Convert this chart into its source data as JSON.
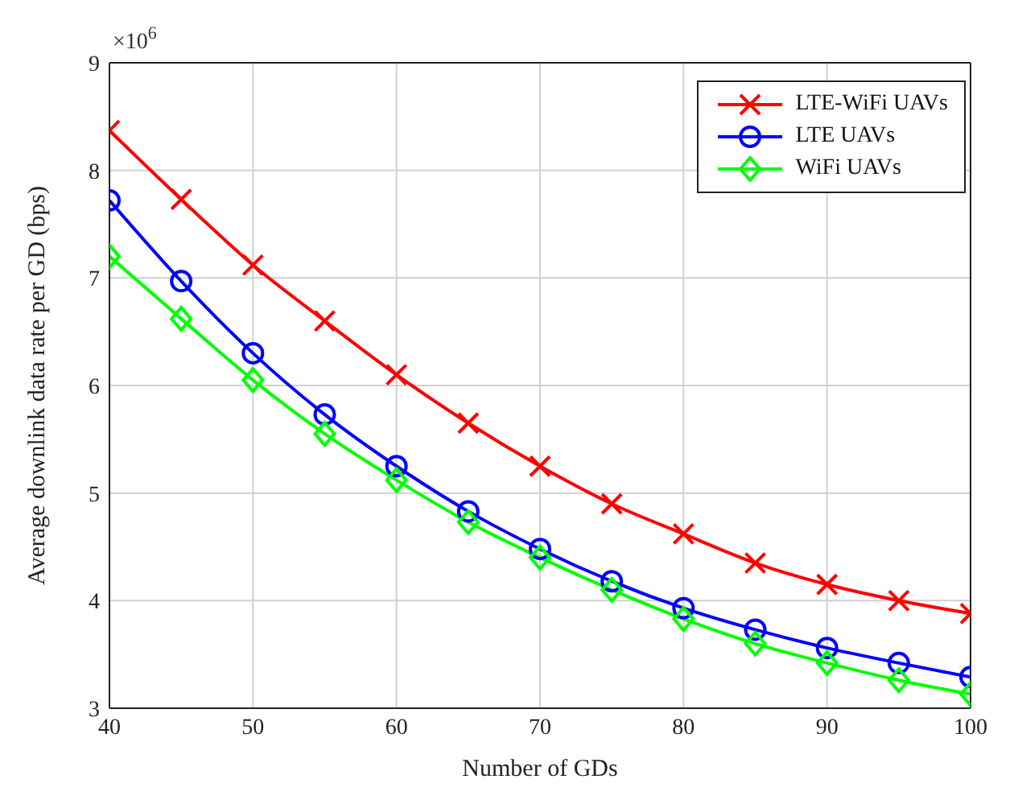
{
  "chart_data": {
    "type": "line",
    "xlabel": "Number of GDs",
    "ylabel": "Average downlink data rate per GD (bps)",
    "annotations": [
      "×10$^{6}$"
    ],
    "x": [
      40,
      45,
      50,
      55,
      60,
      65,
      70,
      75,
      80,
      85,
      90,
      95,
      100
    ],
    "series": [
      {
        "name": "LTE-WiFi UAVs",
        "color": "#ff0000",
        "marker": "cross",
        "values": [
          8.37,
          7.73,
          7.12,
          6.6,
          6.1,
          5.65,
          5.25,
          4.9,
          4.62,
          4.35,
          4.15,
          4.0,
          3.88
        ]
      },
      {
        "name": "LTE UAVs",
        "color": "#0000ff",
        "marker": "circle",
        "values": [
          7.72,
          6.97,
          6.3,
          5.73,
          5.25,
          4.83,
          4.48,
          4.18,
          3.93,
          3.73,
          3.56,
          3.42,
          3.29
        ]
      },
      {
        "name": "WiFi UAVs",
        "color": "#00ff00",
        "marker": "diamond",
        "values": [
          7.2,
          6.62,
          6.05,
          5.55,
          5.12,
          4.73,
          4.4,
          4.1,
          3.83,
          3.6,
          3.42,
          3.26,
          3.13
        ]
      }
    ],
    "xlim": [
      40,
      100
    ],
    "xticks": [
      40,
      50,
      60,
      70,
      80,
      90,
      100
    ],
    "ylim": [
      3,
      9
    ],
    "yticks": [
      3,
      4,
      5,
      6,
      7,
      8,
      9
    ],
    "grid": true,
    "legend": "top right",
    "line_style": "solid"
  }
}
